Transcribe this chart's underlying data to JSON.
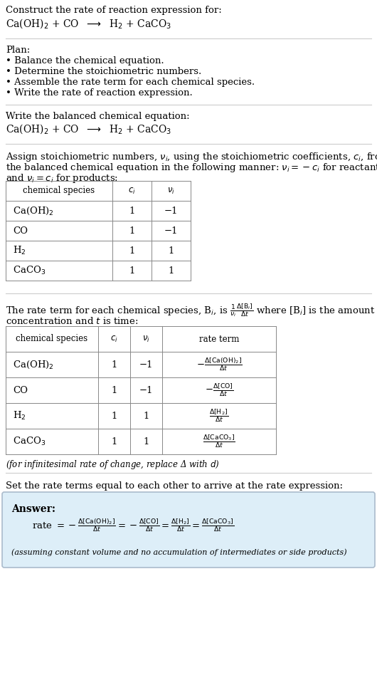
{
  "bg_color": "#ffffff",
  "text_color": "#000000",
  "title_line1": "Construct the rate of reaction expression for:",
  "title_line2": "Ca(OH)$_2$ + CO  $\\longrightarrow$  H$_2$ + CaCO$_3$",
  "plan_header": "Plan:",
  "plan_items": [
    "• Balance the chemical equation.",
    "• Determine the stoichiometric numbers.",
    "• Assemble the rate term for each chemical species.",
    "• Write the rate of reaction expression."
  ],
  "balanced_header": "Write the balanced chemical equation:",
  "balanced_eq": "Ca(OH)$_2$ + CO  $\\longrightarrow$  H$_2$ + CaCO$_3$",
  "stoich_intro1": "Assign stoichiometric numbers, $\\nu_i$, using the stoichiometric coefficients, $c_i$, from",
  "stoich_intro2": "the balanced chemical equation in the following manner: $\\nu_i = -c_i$ for reactants",
  "stoich_intro3": "and $\\nu_i = c_i$ for products:",
  "table1_col_labels": [
    "chemical species",
    "$c_i$",
    "$\\nu_i$"
  ],
  "table1_rows": [
    [
      "Ca(OH)$_2$",
      "1",
      "−1"
    ],
    [
      "CO",
      "1",
      "−1"
    ],
    [
      "H$_2$",
      "1",
      "1"
    ],
    [
      "CaCO$_3$",
      "1",
      "1"
    ]
  ],
  "rate_intro1": "The rate term for each chemical species, B$_i$, is $\\frac{1}{\\nu_i}\\frac{\\Delta[\\mathrm{B}_i]}{\\Delta t}$ where [B$_i$] is the amount",
  "rate_intro2": "concentration and $t$ is time:",
  "table2_col_labels": [
    "chemical species",
    "$c_i$",
    "$\\nu_i$",
    "rate term"
  ],
  "table2_rows": [
    [
      "Ca(OH)$_2$",
      "1",
      "−1",
      "$-\\frac{\\Delta[\\mathrm{Ca(OH)_2}]}{\\Delta t}$"
    ],
    [
      "CO",
      "1",
      "−1",
      "$-\\frac{\\Delta[\\mathrm{CO}]}{\\Delta t}$"
    ],
    [
      "H$_2$",
      "1",
      "1",
      "$\\frac{\\Delta[\\mathrm{H_2}]}{\\Delta t}$"
    ],
    [
      "CaCO$_3$",
      "1",
      "1",
      "$\\frac{\\Delta[\\mathrm{CaCO_3}]}{\\Delta t}$"
    ]
  ],
  "infinitesimal_note": "(for infinitesimal rate of change, replace Δ with $d$)",
  "set_equal_text": "Set the rate terms equal to each other to arrive at the rate expression:",
  "answer_box_color": "#ddeef8",
  "answer_box_edge": "#aabbcc",
  "answer_label": "Answer:",
  "answer_eq": "rate $= -\\frac{\\Delta[\\mathrm{Ca(OH)_2}]}{\\Delta t} = -\\frac{\\Delta[\\mathrm{CO}]}{\\Delta t} = \\frac{\\Delta[\\mathrm{H_2}]}{\\Delta t} = \\frac{\\Delta[\\mathrm{CaCO_3}]}{\\Delta t}$",
  "answer_note": "(assuming constant volume and no accumulation of intermediates or side products)"
}
